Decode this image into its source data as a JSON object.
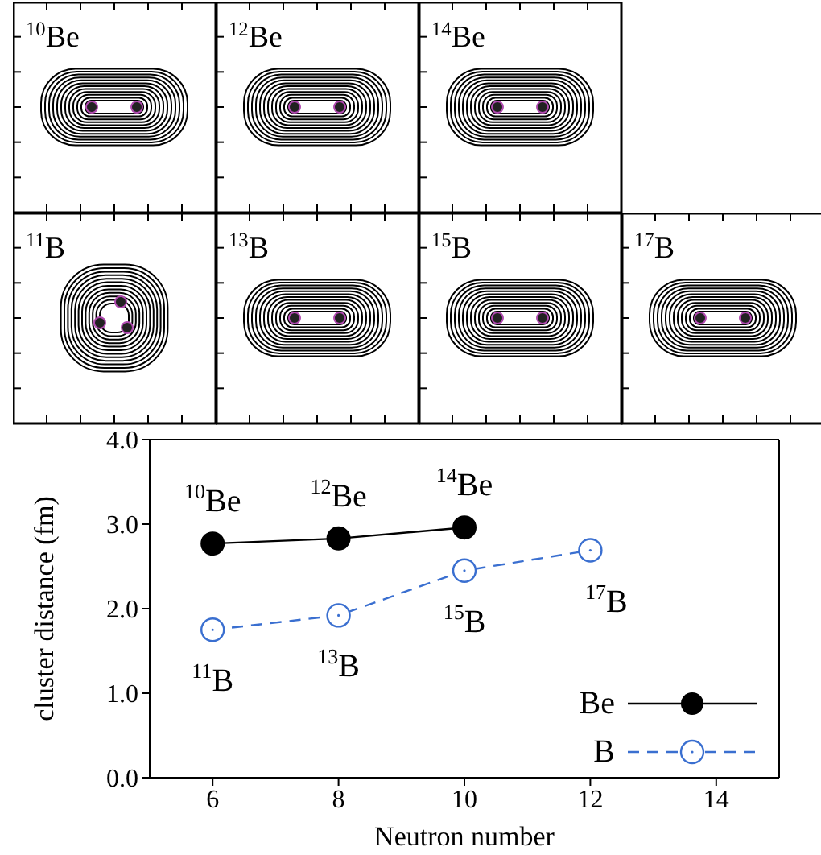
{
  "chart_data": [
    {
      "type": "other",
      "title": "$^{10}$Be"
    },
    {
      "type": "other",
      "title": "$^{12}$Be"
    },
    {
      "type": "other",
      "title": "$^{14}$Be"
    },
    {
      "type": "other",
      "title": "$^{11}$B"
    },
    {
      "type": "other",
      "title": "$^{13}$B"
    },
    {
      "type": "other",
      "title": "$^{15}$B"
    },
    {
      "type": "other",
      "title": "$^{17}$B"
    },
    {
      "type": "line",
      "xlabel": "Neutron number",
      "ylabel": "cluster distance (fm)",
      "xlim": [
        5,
        15
      ],
      "xticks": [
        6,
        8,
        10,
        12,
        14
      ],
      "ylim": [
        0,
        4
      ],
      "yticks": [
        {
          "value": 0,
          "label": "0.0"
        },
        {
          "value": 1,
          "label": "1.0"
        },
        {
          "value": 2,
          "label": "2.0"
        },
        {
          "value": 3,
          "label": "3.0"
        },
        {
          "value": 4,
          "label": "4.0"
        }
      ],
      "marker": "circle",
      "legend": "bottom right",
      "series": [
        {
          "name": "Be",
          "color": "#000000",
          "x": [
            6,
            8,
            10
          ],
          "values": [
            2.77,
            2.83,
            2.96
          ],
          "line_style": "solid"
        },
        {
          "name": "B",
          "color": "#3a6fd0",
          "x": [
            6,
            8,
            10,
            12
          ],
          "values": [
            1.75,
            1.92,
            2.45,
            2.69
          ],
          "line_style": "dashed"
        }
      ],
      "annotations": [
        {
          "text": "$^{10}$Be",
          "x": 6,
          "y": 2.77
        },
        {
          "text": "$^{12}$Be",
          "x": 8,
          "y": 2.83
        },
        {
          "text": "$^{14}$Be",
          "x": 10,
          "y": 2.96
        },
        {
          "text": "$^{11}$B",
          "x": 6,
          "y": 1.75
        },
        {
          "text": "$^{13}$B",
          "x": 8,
          "y": 1.92
        },
        {
          "text": "$^{15}$B",
          "x": 10,
          "y": 2.45
        },
        {
          "text": "$^{17}$B",
          "x": 12,
          "y": 2.69
        }
      ]
    }
  ]
}
